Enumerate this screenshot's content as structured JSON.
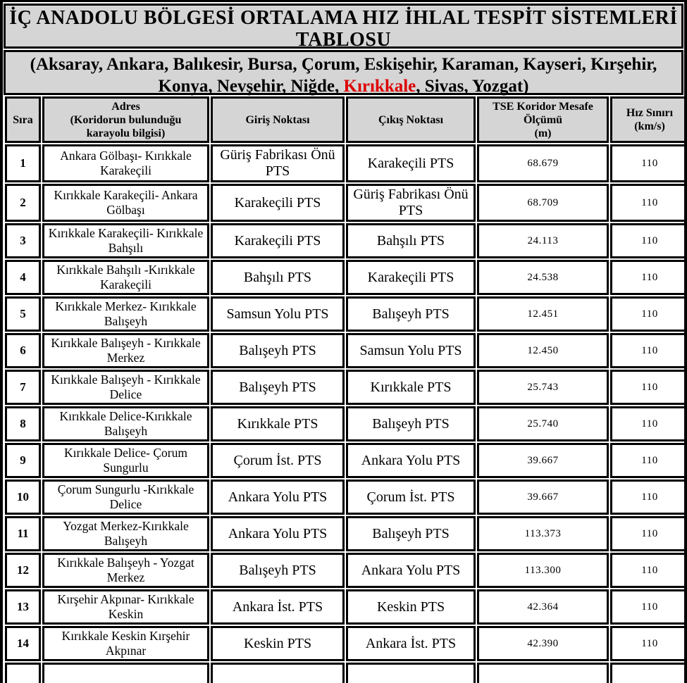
{
  "title": "İÇ ANADOLU BÖLGESİ ORTALAMA HIZ İHLAL TESPİT SİSTEMLERİ TABLOSU",
  "subtitle": {
    "prefix": "(Aksaray, Ankara, Balıkesir, Bursa, Çorum, Eskişehir, Karaman, Kayseri, Kırşehir, Konya, Nevşehir, Niğde, ",
    "highlight": "Kırıkkale",
    "suffix": ", Sivas, Yozgat)"
  },
  "colors": {
    "header_bg": "#d5d5d5",
    "cell_bg": "#ffffff",
    "border": "#000000",
    "highlight_red": "#dd0000"
  },
  "table": {
    "headers": [
      "Sıra",
      "Adres\n(Koridorun bulunduğu\nkarayolu bilgisi)",
      "Giriş Noktası",
      "Çıkış Noktası",
      "TSE Koridor Mesafe\nÖlçümü\n(m)",
      "Hız Sınırı\n(km/s)"
    ],
    "rows": [
      {
        "sira": "1",
        "adres": "Ankara Gölbaşı- Kırıkkale Karakeçili",
        "giris": "Güriş Fabrikası Önü PTS",
        "cikis": "Karakeçili PTS",
        "mesafe": "68.679",
        "hiz": "110"
      },
      {
        "sira": "2",
        "adres": "Kırıkkale Karakeçili- Ankara Gölbaşı",
        "giris": "Karakeçili PTS",
        "cikis": "Güriş Fabrikası Önü PTS",
        "mesafe": "68.709",
        "hiz": "110"
      },
      {
        "sira": "3",
        "adres": "Kırıkkale Karakeçili- Kırıkkale Bahşılı",
        "giris": "Karakeçili PTS",
        "cikis": "Bahşılı PTS",
        "mesafe": "24.113",
        "hiz": "110"
      },
      {
        "sira": "4",
        "adres": "Kırıkkale Bahşılı -Kırıkkale Karakeçili",
        "giris": "Bahşılı PTS",
        "cikis": "Karakeçili PTS",
        "mesafe": "24.538",
        "hiz": "110"
      },
      {
        "sira": "5",
        "adres": "Kırıkkale Merkez- Kırıkkale Balışeyh",
        "giris": "Samsun Yolu PTS",
        "cikis": "Balışeyh PTS",
        "mesafe": "12.451",
        "hiz": "110"
      },
      {
        "sira": "6",
        "adres": "Kırıkkale Balışeyh - Kırıkkale Merkez",
        "giris": "Balışeyh PTS",
        "cikis": "Samsun Yolu PTS",
        "mesafe": "12.450",
        "hiz": "110"
      },
      {
        "sira": "7",
        "adres": "Kırıkkale Balışeyh - Kırıkkale Delice",
        "giris": "Balışeyh PTS",
        "cikis": "Kırıkkale PTS",
        "mesafe": "25.743",
        "hiz": "110"
      },
      {
        "sira": "8",
        "adres": "Kırıkkale Delice-Kırıkkale Balışeyh",
        "giris": "Kırıkkale PTS",
        "cikis": "Balışeyh PTS",
        "mesafe": "25.740",
        "hiz": "110"
      },
      {
        "sira": "9",
        "adres": "Kırıkkale Delice- Çorum Sungurlu",
        "giris": "Çorum İst. PTS",
        "cikis": "Ankara Yolu PTS",
        "mesafe": "39.667",
        "hiz": "110"
      },
      {
        "sira": "10",
        "adres": "Çorum Sungurlu -Kırıkkale Delice",
        "giris": "Ankara Yolu PTS",
        "cikis": "Çorum İst. PTS",
        "mesafe": "39.667",
        "hiz": "110"
      },
      {
        "sira": "11",
        "adres": "Yozgat Merkez-Kırıkkale Balışeyh",
        "giris": "Ankara Yolu PTS",
        "cikis": "Balışeyh PTS",
        "mesafe": "113.373",
        "hiz": "110"
      },
      {
        "sira": "12",
        "adres": "Kırıkkale Balışeyh - Yozgat Merkez",
        "giris": "Balışeyh PTS",
        "cikis": "Ankara Yolu PTS",
        "mesafe": "113.300",
        "hiz": "110"
      },
      {
        "sira": "13",
        "adres": "Kırşehir Akpınar- Kırıkkale Keskin",
        "giris": "Ankara İst. PTS",
        "cikis": "Keskin PTS",
        "mesafe": "42.364",
        "hiz": "110"
      },
      {
        "sira": "14",
        "adres": "Kırıkkale Keskin Kırşehir Akpınar",
        "giris": "Keskin PTS",
        "cikis": "Ankara İst. PTS",
        "mesafe": "42.390",
        "hiz": "110"
      },
      {
        "sira": "",
        "adres": "",
        "giris": "",
        "cikis": "",
        "mesafe": "",
        "hiz": ""
      }
    ]
  }
}
